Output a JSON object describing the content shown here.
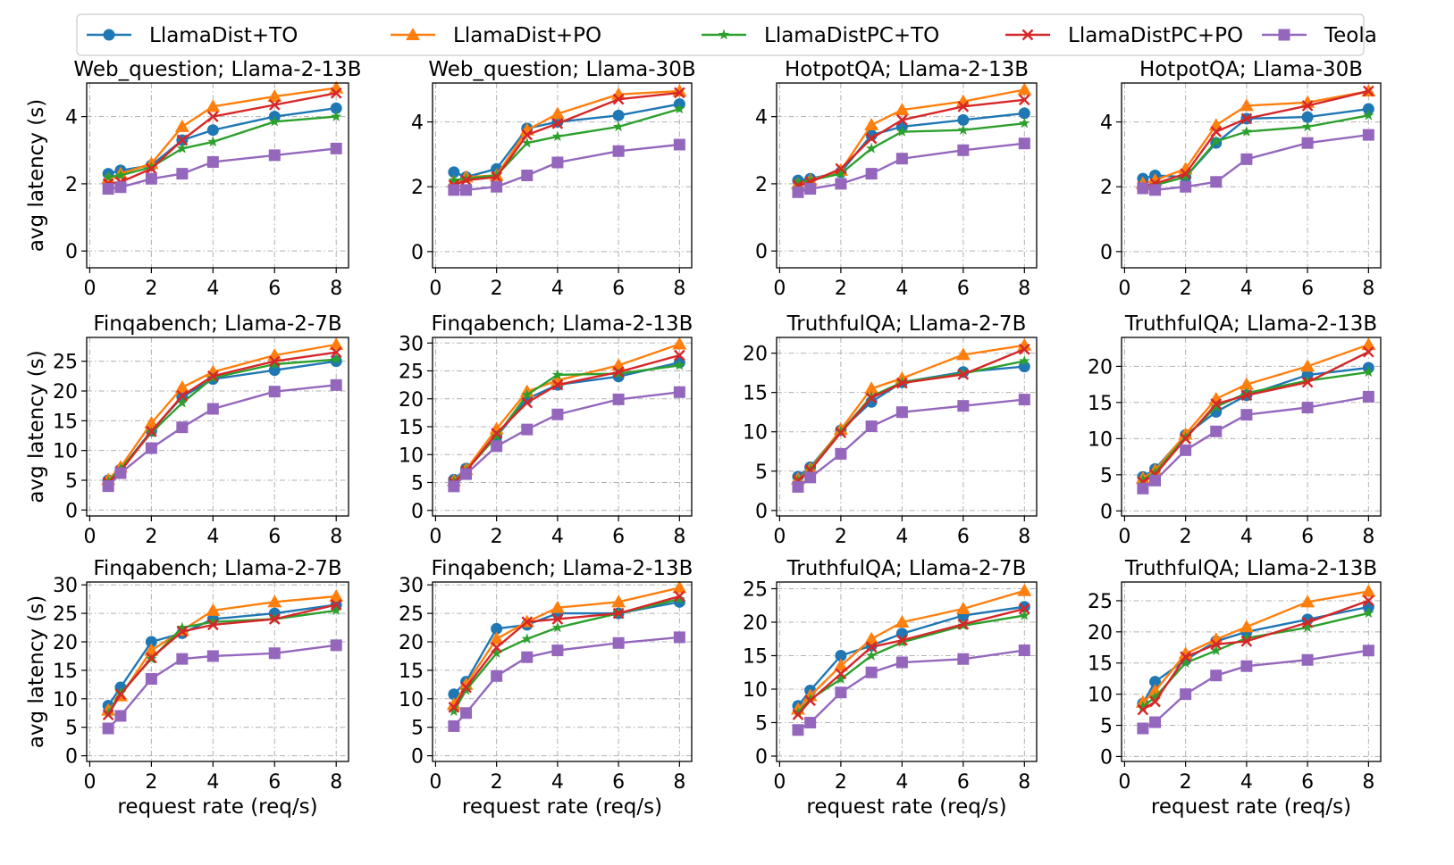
{
  "legend": [
    {
      "name": "LlamaDist+TO",
      "color": "#1f77b4",
      "marker": "circle"
    },
    {
      "name": "LlamaDist+PO",
      "color": "#ff7f0e",
      "marker": "triangle"
    },
    {
      "name": "LlamaDistPC+TO",
      "color": "#2ca02c",
      "marker": "star"
    },
    {
      "name": "LlamaDistPC+PO",
      "color": "#d62728",
      "marker": "x"
    },
    {
      "name": "Teola",
      "color": "#9467bd",
      "marker": "square"
    }
  ],
  "chart_data": [
    {
      "type": "line",
      "title": "Web_question; Llama-2-13B",
      "xlabel": "",
      "ylabel": "avg latency (s)",
      "x": [
        0.6,
        1,
        2,
        3,
        4,
        6,
        8
      ],
      "xticks": [
        0,
        2,
        4,
        6,
        8
      ],
      "yticks": [
        0,
        2,
        4
      ],
      "xlim": [
        -0.1,
        8.4
      ],
      "ylim": [
        -0.5,
        5.0
      ],
      "series": [
        {
          "name": "LlamaDist+TO",
          "values": [
            2.3,
            2.4,
            2.55,
            3.3,
            3.6,
            4.0,
            4.25
          ]
        },
        {
          "name": "LlamaDist+PO",
          "values": [
            2.15,
            2.3,
            2.6,
            3.7,
            4.3,
            4.6,
            4.85
          ]
        },
        {
          "name": "LlamaDistPC+TO",
          "values": [
            2.2,
            2.25,
            2.5,
            3.05,
            3.25,
            3.85,
            4.0
          ]
        },
        {
          "name": "LlamaDistPC+PO",
          "values": [
            2.0,
            2.05,
            2.45,
            3.3,
            4.0,
            4.35,
            4.7
          ]
        },
        {
          "name": "Teola",
          "values": [
            1.85,
            1.9,
            2.15,
            2.3,
            2.65,
            2.85,
            3.05
          ]
        }
      ]
    },
    {
      "type": "line",
      "title": "Web_question; Llama-30B",
      "xlabel": "",
      "ylabel": "",
      "x": [
        0.6,
        1,
        2,
        3,
        4,
        6,
        8
      ],
      "xticks": [
        0,
        2,
        4,
        6,
        8
      ],
      "yticks": [
        0,
        2,
        4
      ],
      "xlim": [
        -0.1,
        8.4
      ],
      "ylim": [
        -0.5,
        5.2
      ],
      "series": [
        {
          "name": "LlamaDist+TO",
          "values": [
            2.45,
            2.3,
            2.55,
            3.8,
            4.0,
            4.2,
            4.55
          ]
        },
        {
          "name": "LlamaDist+PO",
          "values": [
            2.15,
            2.3,
            2.35,
            3.75,
            4.25,
            4.85,
            4.95
          ]
        },
        {
          "name": "LlamaDistPC+TO",
          "values": [
            2.2,
            2.25,
            2.35,
            3.35,
            3.55,
            3.85,
            4.4
          ]
        },
        {
          "name": "LlamaDistPC+PO",
          "values": [
            2.05,
            2.2,
            2.3,
            3.6,
            3.95,
            4.7,
            4.9
          ]
        },
        {
          "name": "Teola",
          "values": [
            1.9,
            1.9,
            2.0,
            2.35,
            2.75,
            3.1,
            3.3
          ]
        }
      ]
    },
    {
      "type": "line",
      "title": "HotpotQA; Llama-2-13B",
      "xlabel": "",
      "ylabel": "",
      "x": [
        0.6,
        1,
        2,
        3,
        4,
        6,
        8
      ],
      "xticks": [
        0,
        2,
        4,
        6,
        8
      ],
      "yticks": [
        0,
        2,
        4
      ],
      "xlim": [
        -0.1,
        8.4
      ],
      "ylim": [
        -0.5,
        5.0
      ],
      "series": [
        {
          "name": "LlamaDist+TO",
          "values": [
            2.1,
            2.15,
            2.35,
            3.45,
            3.7,
            3.9,
            4.1
          ]
        },
        {
          "name": "LlamaDist+PO",
          "values": [
            2.0,
            2.1,
            2.4,
            3.75,
            4.2,
            4.45,
            4.8
          ]
        },
        {
          "name": "LlamaDistPC+TO",
          "values": [
            2.05,
            2.1,
            2.3,
            3.05,
            3.55,
            3.6,
            3.8
          ]
        },
        {
          "name": "LlamaDistPC+PO",
          "values": [
            1.95,
            2.05,
            2.45,
            3.35,
            3.9,
            4.3,
            4.5
          ]
        },
        {
          "name": "Teola",
          "values": [
            1.75,
            1.85,
            2.0,
            2.3,
            2.75,
            3.0,
            3.2
          ]
        }
      ]
    },
    {
      "type": "line",
      "title": "HotpotQA; Llama-30B",
      "xlabel": "",
      "ylabel": "",
      "x": [
        0.6,
        1,
        2,
        3,
        4,
        6,
        8
      ],
      "xticks": [
        0,
        2,
        4,
        6,
        8
      ],
      "yticks": [
        0,
        2,
        4
      ],
      "xlim": [
        -0.1,
        8.4
      ],
      "ylim": [
        -0.5,
        5.2
      ],
      "series": [
        {
          "name": "LlamaDist+TO",
          "values": [
            2.25,
            2.35,
            2.3,
            3.35,
            4.1,
            4.15,
            4.4
          ]
        },
        {
          "name": "LlamaDist+PO",
          "values": [
            2.1,
            2.2,
            2.55,
            3.9,
            4.5,
            4.6,
            4.95
          ]
        },
        {
          "name": "LlamaDistPC+TO",
          "values": [
            2.0,
            2.05,
            2.3,
            3.4,
            3.7,
            3.85,
            4.2
          ]
        },
        {
          "name": "LlamaDistPC+PO",
          "values": [
            2.0,
            2.1,
            2.4,
            3.7,
            4.1,
            4.5,
            4.95
          ]
        },
        {
          "name": "Teola",
          "values": [
            1.95,
            1.9,
            2.0,
            2.15,
            2.85,
            3.35,
            3.6
          ]
        }
      ]
    },
    {
      "type": "line",
      "title": "Finqabench; Llama-2-7B",
      "xlabel": "",
      "ylabel": "avg latency (s)",
      "x": [
        0.6,
        1,
        2,
        3,
        4,
        6,
        8
      ],
      "xticks": [
        0,
        2,
        4,
        6,
        8
      ],
      "yticks": [
        0,
        5,
        10,
        15,
        20,
        25
      ],
      "xlim": [
        -0.1,
        8.4
      ],
      "ylim": [
        -1,
        29
      ],
      "series": [
        {
          "name": "LlamaDist+TO",
          "values": [
            5.0,
            6.8,
            13.3,
            19.0,
            22.0,
            23.5,
            25.0
          ]
        },
        {
          "name": "LlamaDist+PO",
          "values": [
            5.1,
            7.2,
            14.6,
            20.6,
            23.2,
            26.0,
            27.8
          ]
        },
        {
          "name": "LlamaDistPC+TO",
          "values": [
            4.8,
            6.9,
            13.0,
            18.0,
            22.2,
            24.5,
            25.3
          ]
        },
        {
          "name": "LlamaDistPC+PO",
          "values": [
            4.6,
            6.5,
            13.2,
            19.2,
            22.5,
            25.0,
            26.5
          ]
        },
        {
          "name": "Teola",
          "values": [
            4.0,
            6.2,
            10.4,
            13.9,
            17.0,
            19.9,
            21.0
          ]
        }
      ]
    },
    {
      "type": "line",
      "title": "Finqabench; Llama-2-13B",
      "xlabel": "",
      "ylabel": "",
      "x": [
        0.6,
        1,
        2,
        3,
        4,
        6,
        8
      ],
      "xticks": [
        0,
        2,
        4,
        6,
        8
      ],
      "yticks": [
        0,
        5,
        10,
        15,
        20,
        25,
        30
      ],
      "xlim": [
        -0.1,
        8.4
      ],
      "ylim": [
        -1,
        31
      ],
      "series": [
        {
          "name": "LlamaDist+TO",
          "values": [
            5.5,
            7.5,
            13.2,
            20.0,
            22.5,
            24.0,
            26.5
          ]
        },
        {
          "name": "LlamaDist+PO",
          "values": [
            5.3,
            7.3,
            14.6,
            21.3,
            23.3,
            26.0,
            29.8
          ]
        },
        {
          "name": "LlamaDistPC+TO",
          "values": [
            5.2,
            7.1,
            13.3,
            20.7,
            24.3,
            24.5,
            26.0
          ]
        },
        {
          "name": "LlamaDistPC+PO",
          "values": [
            5.0,
            7.0,
            13.8,
            19.3,
            22.5,
            24.8,
            27.8
          ]
        },
        {
          "name": "Teola",
          "values": [
            4.3,
            6.5,
            11.5,
            14.5,
            17.2,
            19.9,
            21.2
          ]
        }
      ]
    },
    {
      "type": "line",
      "title": "TruthfulQA; Llama-2-7B",
      "xlabel": "",
      "ylabel": "",
      "x": [
        0.6,
        1,
        2,
        3,
        4,
        6,
        8
      ],
      "xticks": [
        0,
        2,
        4,
        6,
        8
      ],
      "yticks": [
        0,
        5,
        10,
        15,
        20
      ],
      "xlim": [
        -0.1,
        8.4
      ],
      "ylim": [
        -0.7,
        22
      ],
      "series": [
        {
          "name": "LlamaDist+TO",
          "values": [
            4.3,
            5.5,
            10.2,
            13.8,
            16.3,
            17.6,
            18.3
          ]
        },
        {
          "name": "LlamaDist+PO",
          "values": [
            4.0,
            5.3,
            10.3,
            15.5,
            16.8,
            19.8,
            21.0
          ]
        },
        {
          "name": "LlamaDistPC+TO",
          "values": [
            3.9,
            5.2,
            10.0,
            14.5,
            16.3,
            17.4,
            19.0
          ]
        },
        {
          "name": "LlamaDistPC+PO",
          "values": [
            3.8,
            5.1,
            9.9,
            14.3,
            16.2,
            17.3,
            20.5
          ]
        },
        {
          "name": "Teola",
          "values": [
            3.0,
            4.2,
            7.2,
            10.7,
            12.5,
            13.3,
            14.1
          ]
        }
      ]
    },
    {
      "type": "line",
      "title": "TruthfulQA; Llama-2-13B",
      "xlabel": "",
      "ylabel": "",
      "x": [
        0.6,
        1,
        2,
        3,
        4,
        6,
        8
      ],
      "xticks": [
        0,
        2,
        4,
        6,
        8
      ],
      "yticks": [
        0,
        5,
        10,
        15,
        20
      ],
      "xlim": [
        -0.1,
        8.4
      ],
      "ylim": [
        -0.7,
        24
      ],
      "series": [
        {
          "name": "LlamaDist+TO",
          "values": [
            4.7,
            5.8,
            10.5,
            13.7,
            16.0,
            18.8,
            19.8
          ]
        },
        {
          "name": "LlamaDist+PO",
          "values": [
            4.5,
            5.6,
            10.6,
            15.5,
            17.5,
            20.0,
            23.0
          ]
        },
        {
          "name": "LlamaDistPC+TO",
          "values": [
            4.3,
            5.3,
            10.2,
            14.4,
            16.3,
            18.0,
            19.2
          ]
        },
        {
          "name": "LlamaDistPC+PO",
          "values": [
            4.0,
            5.0,
            10.0,
            14.8,
            16.0,
            17.8,
            22.0
          ]
        },
        {
          "name": "Teola",
          "values": [
            3.1,
            4.2,
            8.4,
            11.0,
            13.3,
            14.3,
            15.8
          ]
        }
      ]
    },
    {
      "type": "line",
      "title": "Finqabench; Llama-2-7B",
      "xlabel": "request rate (req/s)",
      "ylabel": "avg latency (s)",
      "x": [
        0.6,
        1,
        2,
        3,
        4,
        6,
        8
      ],
      "xticks": [
        0,
        2,
        4,
        6,
        8
      ],
      "yticks": [
        0,
        5,
        10,
        15,
        20,
        25,
        30
      ],
      "xlim": [
        -0.1,
        8.4
      ],
      "ylim": [
        -1,
        30.5
      ],
      "series": [
        {
          "name": "LlamaDist+TO",
          "values": [
            8.8,
            12.0,
            20.0,
            21.5,
            24.0,
            25.0,
            26.5
          ]
        },
        {
          "name": "LlamaDist+PO",
          "values": [
            8.0,
            10.5,
            18.5,
            22.0,
            25.5,
            27.0,
            28.0
          ]
        },
        {
          "name": "LlamaDistPC+TO",
          "values": [
            7.5,
            11.0,
            17.0,
            22.5,
            23.5,
            24.0,
            25.5
          ]
        },
        {
          "name": "LlamaDistPC+PO",
          "values": [
            7.2,
            10.8,
            17.2,
            21.8,
            23.0,
            24.0,
            26.5
          ]
        },
        {
          "name": "Teola",
          "values": [
            4.8,
            7.0,
            13.5,
            17.0,
            17.5,
            18.0,
            19.4
          ]
        }
      ]
    },
    {
      "type": "line",
      "title": "Finqabench; Llama-2-13B",
      "xlabel": "request rate (req/s)",
      "ylabel": "",
      "x": [
        0.6,
        1,
        2,
        3,
        4,
        6,
        8
      ],
      "xticks": [
        0,
        2,
        4,
        6,
        8
      ],
      "yticks": [
        0,
        5,
        10,
        15,
        20,
        25,
        30
      ],
      "xlim": [
        -0.1,
        8.4
      ],
      "ylim": [
        -1,
        30.5
      ],
      "series": [
        {
          "name": "LlamaDist+TO",
          "values": [
            10.8,
            13.0,
            22.3,
            23.0,
            25.0,
            25.0,
            27.0
          ]
        },
        {
          "name": "LlamaDist+PO",
          "values": [
            9.0,
            12.5,
            20.5,
            23.5,
            26.0,
            27.0,
            29.5
          ]
        },
        {
          "name": "LlamaDistPC+TO",
          "values": [
            7.8,
            11.5,
            18.0,
            20.5,
            22.5,
            25.0,
            27.5
          ]
        },
        {
          "name": "LlamaDistPC+PO",
          "values": [
            8.5,
            12.0,
            19.0,
            23.5,
            24.0,
            25.0,
            28.0
          ]
        },
        {
          "name": "Teola",
          "values": [
            5.2,
            7.5,
            14.0,
            17.3,
            18.5,
            19.8,
            20.8
          ]
        }
      ]
    },
    {
      "type": "line",
      "title": "TruthfulQA; Llama-2-7B",
      "xlabel": "request rate (req/s)",
      "ylabel": "",
      "x": [
        0.6,
        1,
        2,
        3,
        4,
        6,
        8
      ],
      "xticks": [
        0,
        2,
        4,
        6,
        8
      ],
      "yticks": [
        0,
        5,
        10,
        15,
        20,
        25
      ],
      "xlim": [
        -0.1,
        8.4
      ],
      "ylim": [
        -0.8,
        26
      ],
      "series": [
        {
          "name": "LlamaDist+TO",
          "values": [
            7.5,
            9.8,
            15.0,
            16.5,
            18.3,
            21.0,
            22.3
          ]
        },
        {
          "name": "LlamaDist+PO",
          "values": [
            7.0,
            9.0,
            13.5,
            17.5,
            20.0,
            22.0,
            24.7
          ]
        },
        {
          "name": "LlamaDistPC+TO",
          "values": [
            6.5,
            8.5,
            11.5,
            15.0,
            17.0,
            19.5,
            21.0
          ]
        },
        {
          "name": "LlamaDistPC+PO",
          "values": [
            6.2,
            8.3,
            12.3,
            16.3,
            17.3,
            19.7,
            22.0
          ]
        },
        {
          "name": "Teola",
          "values": [
            3.9,
            5.0,
            9.5,
            12.5,
            14.0,
            14.5,
            15.8
          ]
        }
      ]
    },
    {
      "type": "line",
      "title": "TruthfulQA; Llama-2-13B",
      "xlabel": "request rate (req/s)",
      "ylabel": "",
      "x": [
        0.6,
        1,
        2,
        3,
        4,
        6,
        8
      ],
      "xticks": [
        0,
        2,
        4,
        6,
        8
      ],
      "yticks": [
        0,
        5,
        10,
        15,
        20,
        25
      ],
      "xlim": [
        -0.1,
        8.4
      ],
      "ylim": [
        -0.8,
        28
      ],
      "series": [
        {
          "name": "LlamaDist+TO",
          "values": [
            8.5,
            12.0,
            15.5,
            18.5,
            20.0,
            22.0,
            24.0
          ]
        },
        {
          "name": "LlamaDist+PO",
          "values": [
            8.7,
            10.5,
            16.5,
            18.8,
            20.8,
            24.8,
            26.5
          ]
        },
        {
          "name": "LlamaDistPC+TO",
          "values": [
            8.0,
            9.5,
            15.0,
            17.0,
            19.0,
            20.7,
            23.0
          ]
        },
        {
          "name": "LlamaDistPC+PO",
          "values": [
            7.5,
            8.8,
            16.0,
            18.0,
            18.5,
            21.5,
            25.0
          ]
        },
        {
          "name": "Teola",
          "values": [
            4.5,
            5.5,
            10.0,
            13.0,
            14.5,
            15.5,
            17.0
          ]
        }
      ]
    }
  ]
}
